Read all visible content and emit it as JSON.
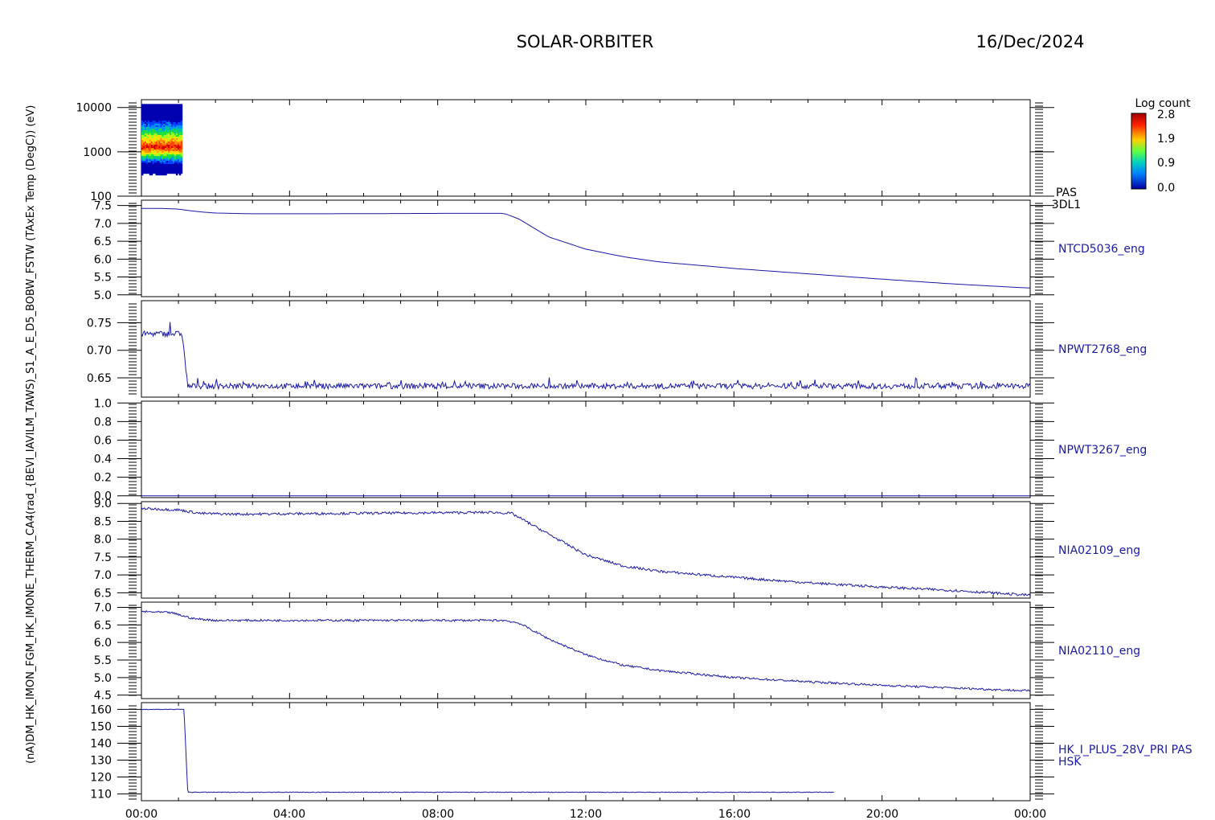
{
  "header": {
    "mission": "SOLAR-ORBITER",
    "date": "16/Dec/2024"
  },
  "colors": {
    "trace": "#1a1aa8",
    "axis": "#000000"
  },
  "colorbar": {
    "title": "Log count",
    "ticks": [
      "2.8",
      "1.9",
      "0.9",
      "0.0"
    ],
    "palette": [
      "#d00000",
      "#ff4000",
      "#ff9000",
      "#ffe000",
      "#a0ff20",
      "#20e040",
      "#00c0a0",
      "#0090ff",
      "#0040ff",
      "#0000b0"
    ]
  },
  "y_axis_stack_label": "(nA)DM_HK_IMON_FGM_HK_IMONE_THERM_CA4(rad_{BEVI_IAVILM_TAWS)_S1_A_E_D5_BOBW_FSTW (TAxEx Temp (DegC)) (eV)",
  "time_axis": {
    "labels": [
      "00:00",
      "04:00",
      "08:00",
      "12:00",
      "16:00",
      "20:00",
      "00:00"
    ]
  },
  "chart_data": [
    {
      "type": "heatmap",
      "right_label": [
        "PAS",
        "3DL1"
      ],
      "ylabel": "(eV)",
      "yscale": "log",
      "ylim": [
        100,
        15000
      ],
      "ticks": [
        "10000",
        "1000",
        "100"
      ],
      "tick_values": [
        10000,
        1000,
        100
      ],
      "x_range_hours": [
        0,
        1.1
      ],
      "energy_range": [
        300,
        12000
      ],
      "peak_energy": 1300,
      "max_log_count": 2.8
    },
    {
      "type": "line",
      "right_label": "NTCD5036_eng",
      "ylim": [
        4.95,
        7.65
      ],
      "ticks": [
        "7.5",
        "7.0",
        "6.5",
        "6.0",
        "5.5",
        "5.0"
      ],
      "tick_values": [
        7.5,
        7.0,
        6.5,
        6.0,
        5.5,
        5.0
      ],
      "x_hours": [
        0,
        0.5,
        1.0,
        1.5,
        2.0,
        3.0,
        5.0,
        8.0,
        9.8,
        10.2,
        11.0,
        12.0,
        13.0,
        14.0,
        16.0,
        18.0,
        20.0,
        22.0,
        24.0
      ],
      "values": [
        7.42,
        7.42,
        7.4,
        7.33,
        7.29,
        7.27,
        7.27,
        7.28,
        7.28,
        7.12,
        6.62,
        6.28,
        6.07,
        5.92,
        5.74,
        5.59,
        5.44,
        5.3,
        5.19
      ],
      "noise": 0
    },
    {
      "type": "line",
      "right_label": "NPWT2768_eng",
      "ylim": [
        0.615,
        0.79
      ],
      "ticks": [
        "0.75",
        "0.70",
        "0.65"
      ],
      "tick_values": [
        0.75,
        0.7,
        0.65
      ],
      "x_hours": [
        0,
        1.1,
        1.25,
        24
      ],
      "values": [
        0.73,
        0.73,
        0.635,
        0.635
      ],
      "noise": 0.005,
      "spikes": 0.012
    },
    {
      "type": "line",
      "right_label": "NPWT3267_eng",
      "ylim": [
        -0.02,
        1.02
      ],
      "ticks": [
        "1.0",
        "0.8",
        "0.6",
        "0.4",
        "0.2",
        "0.0"
      ],
      "tick_values": [
        1.0,
        0.8,
        0.6,
        0.4,
        0.2,
        0.0
      ],
      "x_hours": [
        0,
        24
      ],
      "values": [
        0.0,
        0.0
      ],
      "noise": 0
    },
    {
      "type": "line",
      "right_label": "NIA02109_eng",
      "ylim": [
        6.35,
        9.05
      ],
      "ticks": [
        "9.0",
        "8.5",
        "8.0",
        "7.5",
        "7.0",
        "6.5"
      ],
      "tick_values": [
        9.0,
        8.5,
        8.0,
        7.5,
        7.0,
        6.5
      ],
      "x_hours": [
        0,
        1.0,
        1.6,
        2.5,
        9.5,
        10.0,
        11.0,
        12.0,
        13.0,
        14.0,
        16.0,
        18.0,
        20.0,
        22.0,
        24.0
      ],
      "values": [
        8.86,
        8.82,
        8.72,
        8.7,
        8.75,
        8.72,
        8.14,
        7.56,
        7.25,
        7.1,
        6.93,
        6.78,
        6.66,
        6.56,
        6.43
      ],
      "noise": 0.035
    },
    {
      "type": "line",
      "right_label": "NIA02110_eng",
      "ylim": [
        4.4,
        7.15
      ],
      "ticks": [
        "7.0",
        "6.5",
        "6.0",
        "5.5",
        "5.0",
        "4.5"
      ],
      "tick_values": [
        7.0,
        6.5,
        6.0,
        5.5,
        5.0,
        4.5
      ],
      "x_hours": [
        0,
        0.8,
        1.4,
        2.0,
        9.8,
        10.2,
        11.0,
        12.0,
        13.0,
        14.0,
        16.0,
        18.0,
        20.0,
        22.0,
        24.0
      ],
      "values": [
        6.88,
        6.85,
        6.68,
        6.63,
        6.63,
        6.55,
        6.1,
        5.65,
        5.35,
        5.2,
        5.0,
        4.88,
        4.78,
        4.7,
        4.62
      ],
      "noise": 0.03
    },
    {
      "type": "line",
      "right_label": [
        "HK_I_PLUS_28V_PRI PAS",
        "HSK"
      ],
      "ylim": [
        106,
        164
      ],
      "ticks": [
        "160",
        "150",
        "140",
        "130",
        "120",
        "110"
      ],
      "tick_values": [
        160,
        150,
        140,
        130,
        120,
        110
      ],
      "x_hours": [
        0,
        1.15,
        1.25,
        18.7
      ],
      "values": [
        160,
        160,
        111,
        111
      ],
      "noise": 0.2
    }
  ]
}
